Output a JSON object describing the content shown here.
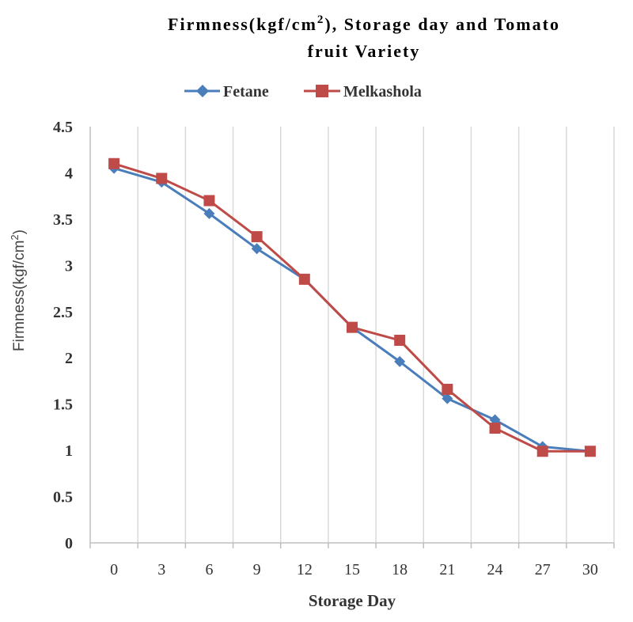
{
  "chart_data": {
    "type": "line",
    "title_line1": "Firmness(kgf/cm",
    "title_sup": "2",
    "title_line1_tail": "), Storage day and Tomato",
    "title_line2": "fruit Variety",
    "xlabel": "Storage Day",
    "ylabel_main": "Firmness(kgf/cm",
    "ylabel_sup": "2",
    "ylabel_tail": ")",
    "categories": [
      "0",
      "3",
      "6",
      "9",
      "12",
      "15",
      "18",
      "21",
      "24",
      "27",
      "30"
    ],
    "ylim": [
      0,
      4.5
    ],
    "yticks": [
      "0",
      "0.5",
      "1",
      "1.5",
      "2",
      "2.5",
      "3",
      "3.5",
      "4",
      "4.5"
    ],
    "grid": "vertical",
    "legend_position": "top",
    "series": [
      {
        "name": "Fetane",
        "marker": "diamond",
        "color": "#4a7ebb",
        "values": [
          4.05,
          3.9,
          3.56,
          3.18,
          2.85,
          2.33,
          1.96,
          1.56,
          1.33,
          1.04,
          0.99
        ]
      },
      {
        "name": "Melkashola",
        "marker": "square",
        "color": "#be4b48",
        "values": [
          4.1,
          3.94,
          3.7,
          3.31,
          2.85,
          2.33,
          2.19,
          1.66,
          1.24,
          0.99,
          0.99
        ]
      }
    ]
  }
}
